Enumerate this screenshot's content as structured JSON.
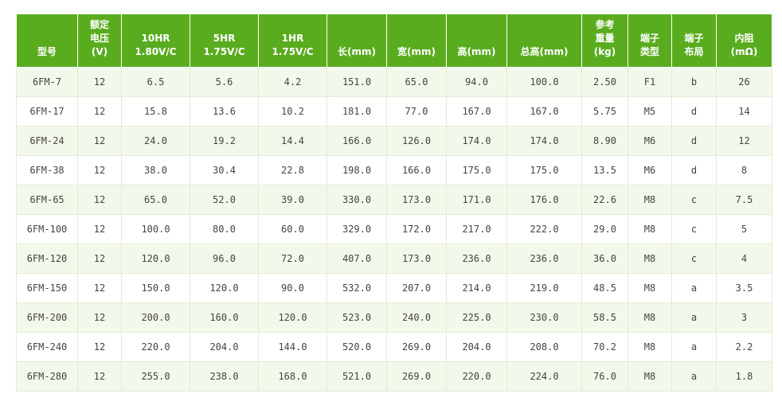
{
  "table": {
    "headers": [
      [
        "型号"
      ],
      [
        "额定",
        "电压",
        "(V)"
      ],
      [
        "10HR",
        "1.80V/C"
      ],
      [
        "5HR",
        "1.75V/C"
      ],
      [
        "1HR",
        "1.75V/C"
      ],
      [
        "长(mm)"
      ],
      [
        "宽(mm)"
      ],
      [
        "高(mm)"
      ],
      [
        "总高(mm)"
      ],
      [
        "参考",
        "重量",
        "(kg)"
      ],
      [
        "端子",
        "类型"
      ],
      [
        "端子",
        "布局"
      ],
      [
        "内阻",
        "(mΩ)"
      ]
    ],
    "rows": [
      [
        "6FM-7",
        "12",
        "6.5",
        "5.6",
        "4.2",
        "151.0",
        "65.0",
        "94.0",
        "100.0",
        "2.50",
        "F1",
        "b",
        "26"
      ],
      [
        "6FM-17",
        "12",
        "15.8",
        "13.6",
        "10.2",
        "181.0",
        "77.0",
        "167.0",
        "167.0",
        "5.75",
        "M5",
        "d",
        "14"
      ],
      [
        "6FM-24",
        "12",
        "24.0",
        "19.2",
        "14.4",
        "166.0",
        "126.0",
        "174.0",
        "174.0",
        "8.90",
        "M6",
        "d",
        "12"
      ],
      [
        "6FM-38",
        "12",
        "38.0",
        "30.4",
        "22.8",
        "198.0",
        "166.0",
        "175.0",
        "175.0",
        "13.5",
        "M6",
        "d",
        "8"
      ],
      [
        "6FM-65",
        "12",
        "65.0",
        "52.0",
        "39.0",
        "330.0",
        "173.0",
        "171.0",
        "176.0",
        "22.6",
        "M8",
        "c",
        "7.5"
      ],
      [
        "6FM-100",
        "12",
        "100.0",
        "80.0",
        "60.0",
        "329.0",
        "172.0",
        "217.0",
        "222.0",
        "29.0",
        "M8",
        "c",
        "5"
      ],
      [
        "6FM-120",
        "12",
        "120.0",
        "96.0",
        "72.0",
        "407.0",
        "173.0",
        "236.0",
        "236.0",
        "36.0",
        "M8",
        "c",
        "4"
      ],
      [
        "6FM-150",
        "12",
        "150.0",
        "120.0",
        "90.0",
        "532.0",
        "207.0",
        "214.0",
        "219.0",
        "48.5",
        "M8",
        "a",
        "3.5"
      ],
      [
        "6FM-200",
        "12",
        "200.0",
        "160.0",
        "120.0",
        "523.0",
        "240.0",
        "225.0",
        "230.0",
        "58.5",
        "M8",
        "a",
        "3"
      ],
      [
        "6FM-240",
        "12",
        "220.0",
        "204.0",
        "144.0",
        "520.0",
        "269.0",
        "204.0",
        "208.0",
        "70.2",
        "M8",
        "a",
        "2.2"
      ],
      [
        "6FM-280",
        "12",
        "255.0",
        "238.0",
        "168.0",
        "521.0",
        "269.0",
        "220.0",
        "224.0",
        "76.0",
        "M8",
        "a",
        "1.8"
      ]
    ]
  },
  "colors": {
    "header_bg": "#5aac1f",
    "header_text": "#ffffff",
    "row_alt_bg": "#f3f9ea",
    "cell_text": "#444444",
    "border": "#e2ebd8"
  }
}
